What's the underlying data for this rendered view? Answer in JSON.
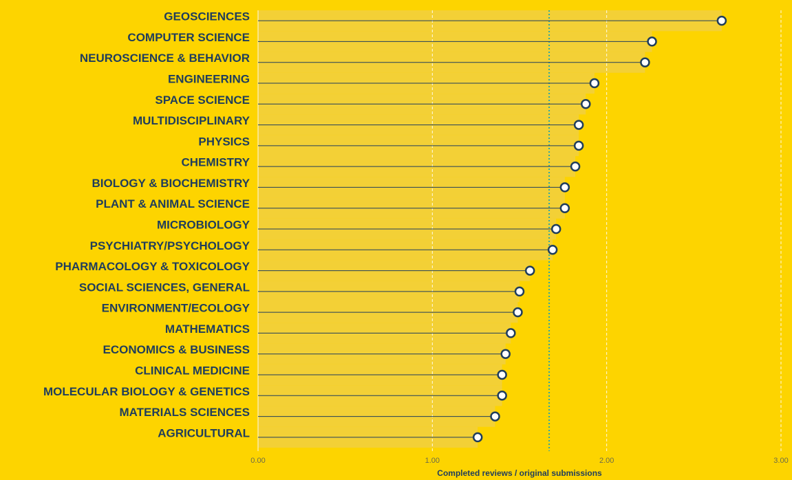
{
  "chart_data": {
    "type": "lollipop",
    "x_label": "Completed reviews / original submissions",
    "categories": [
      "GEOSCIENCES",
      "COMPUTER SCIENCE",
      "NEUROSCIENCE & BEHAVIOR",
      "ENGINEERING",
      "SPACE SCIENCE",
      "MULTIDISCIPLINARY",
      "PHYSICS",
      "CHEMISTRY",
      "BIOLOGY & BIOCHEMISTRY",
      "PLANT & ANIMAL SCIENCE",
      "MICROBIOLOGY",
      "PSYCHIATRY/PSYCHOLOGY",
      "PHARMACOLOGY & TOXICOLOGY",
      "SOCIAL SCIENCES, GENERAL",
      "ENVIRONMENT/ECOLOGY",
      "MATHEMATICS",
      "ECONOMICS & BUSINESS",
      "CLINICAL MEDICINE",
      "MOLECULAR BIOLOGY & GENETICS",
      "MATERIALS SCIENCES",
      "AGRICULTURAL"
    ],
    "values": [
      2.66,
      2.26,
      2.22,
      1.93,
      1.88,
      1.84,
      1.84,
      1.82,
      1.76,
      1.76,
      1.71,
      1.69,
      1.56,
      1.5,
      1.49,
      1.45,
      1.42,
      1.4,
      1.4,
      1.36,
      1.26
    ],
    "reference_line": 1.67,
    "xlim": [
      0,
      3
    ],
    "xticks": [
      {
        "value": 0,
        "label": "0.00"
      },
      {
        "value": 1,
        "label": "1.00"
      },
      {
        "value": 2,
        "label": "2.00"
      },
      {
        "value": 3,
        "label": "3.00"
      }
    ],
    "color": "#1f3d5c",
    "reference_color": "#2aa7a7",
    "grid": true
  }
}
